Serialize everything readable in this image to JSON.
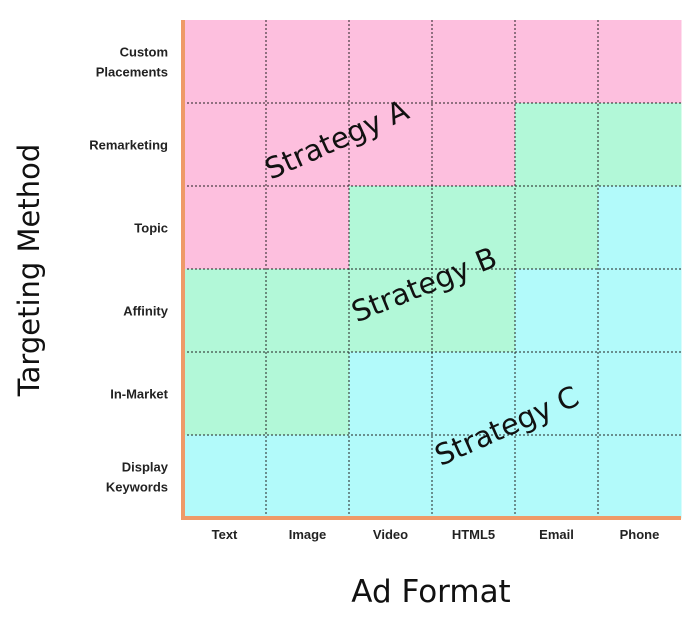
{
  "chart_data": {
    "type": "heatmap",
    "title": "",
    "xlabel": "Ad Format",
    "ylabel": "Targeting Method",
    "columns": [
      "Text",
      "Image",
      "Video",
      "HTML5",
      "Email",
      "Phone"
    ],
    "rows": [
      {
        "label": [
          "Custom",
          "Placements"
        ],
        "cells": [
          "A",
          "A",
          "A",
          "A",
          "A",
          "A"
        ]
      },
      {
        "label": [
          "Remarketing"
        ],
        "cells": [
          "A",
          "A",
          "A",
          "A",
          "B",
          "B"
        ]
      },
      {
        "label": [
          "Topic"
        ],
        "cells": [
          "A",
          "A",
          "B",
          "B",
          "B",
          "C"
        ]
      },
      {
        "label": [
          "Affinity"
        ],
        "cells": [
          "B",
          "B",
          "B",
          "B",
          "C",
          "C"
        ]
      },
      {
        "label": [
          "In-Market"
        ],
        "cells": [
          "B",
          "B",
          "C",
          "C",
          "C",
          "C"
        ]
      },
      {
        "label": [
          "Display",
          "Keywords"
        ],
        "cells": [
          "C",
          "C",
          "C",
          "C",
          "C",
          "C"
        ]
      }
    ],
    "strategies": {
      "A": {
        "label": "Strategy A",
        "color": "#fdbfde"
      },
      "B": {
        "label": "Strategy B",
        "color": "#b2f8d8"
      },
      "C": {
        "label": "Strategy C",
        "color": "#b2fafa"
      }
    },
    "axis_color": "#ee9a68",
    "grid": true
  }
}
